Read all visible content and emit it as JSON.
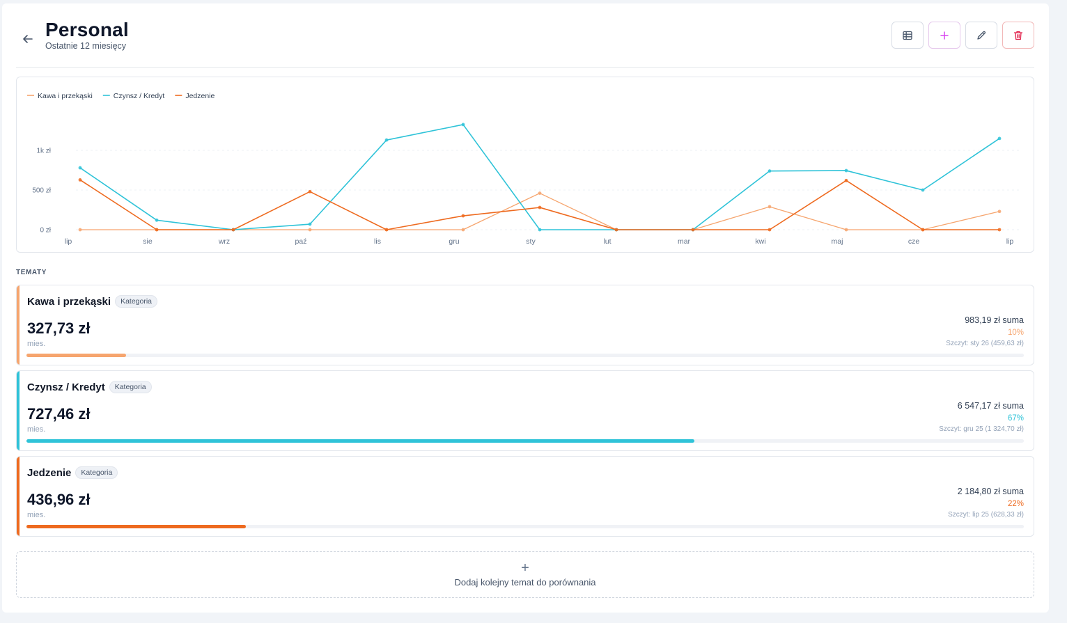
{
  "header": {
    "title": "Personal",
    "subtitle": "Ostatnie 12 miesięcy"
  },
  "toolbar": {
    "buttons": [
      "table-icon",
      "plus-icon",
      "pencil-icon",
      "trash-icon"
    ]
  },
  "colors": {
    "kawa": "#f6a56e",
    "czynsz": "#2fc3d8",
    "jedzenie": "#ee6a1f",
    "plus": "#d946ef",
    "danger": "#e11d48"
  },
  "chart_data": {
    "type": "line",
    "x": [
      "lip",
      "sie",
      "wrz",
      "paź",
      "lis",
      "gru",
      "sty",
      "lut",
      "mar",
      "kwi",
      "maj",
      "cze",
      "lip"
    ],
    "yticks": [
      "0 zł",
      "500 zł",
      "1k zł"
    ],
    "ylim": [
      0,
      1000
    ],
    "grid": true,
    "legend_position": "top-left",
    "series": [
      {
        "name": "Kawa i przekąski",
        "color": "#f6a56e",
        "values": [
          0,
          0,
          0,
          0,
          0,
          0,
          460,
          0,
          0,
          290,
          0,
          0,
          230
        ]
      },
      {
        "name": "Czynsz / Kredyt",
        "color": "#2fc3d8",
        "values": [
          780,
          120,
          0,
          70,
          1130,
          1325,
          0,
          0,
          0,
          740,
          745,
          500,
          1150
        ]
      },
      {
        "name": "Jedzenie",
        "color": "#ee6a1f",
        "values": [
          628,
          0,
          0,
          480,
          0,
          175,
          280,
          0,
          0,
          0,
          620,
          0,
          0
        ]
      }
    ]
  },
  "section_label": "TEMATY",
  "topics": [
    {
      "name": "Kawa i przekąski",
      "badge": "Kategoria",
      "amount": "327,73 zł",
      "per": "mies.",
      "sum": "983,19 zł suma",
      "pct": "10%",
      "peak": "Szczyt: sty 26 (459,63 zł)",
      "share": 0.1,
      "color": "#f6a56e"
    },
    {
      "name": "Czynsz / Kredyt",
      "badge": "Kategoria",
      "amount": "727,46 zł",
      "per": "mies.",
      "sum": "6 547,17 zł suma",
      "pct": "67%",
      "peak": "Szczyt: gru 25 (1 324,70 zł)",
      "share": 0.67,
      "color": "#2fc3d8"
    },
    {
      "name": "Jedzenie",
      "badge": "Kategoria",
      "amount": "436,96 zł",
      "per": "mies.",
      "sum": "2 184,80 zł suma",
      "pct": "22%",
      "peak": "Szczyt: lip 25 (628,33 zł)",
      "share": 0.22,
      "color": "#ee6a1f"
    }
  ],
  "add_topic": {
    "plus": "+",
    "label": "Dodaj kolejny temat do porównania"
  }
}
